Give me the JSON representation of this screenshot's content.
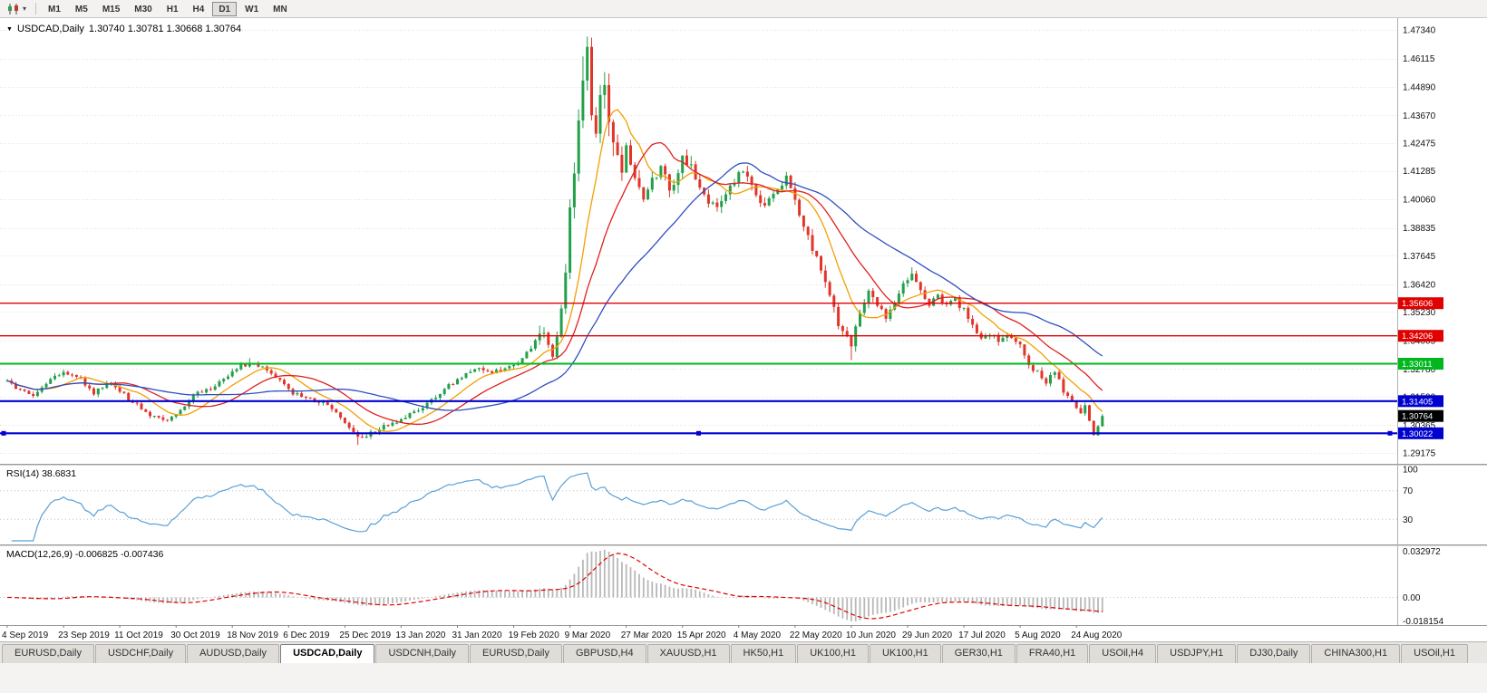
{
  "toolbar": {
    "dropdown_icon": "▾",
    "timeframes": [
      "M1",
      "M5",
      "M15",
      "M30",
      "H1",
      "H4",
      "D1",
      "W1",
      "MN"
    ],
    "active_timeframe": "D1"
  },
  "chart_header": {
    "collapse_icon": "▼",
    "symbol": "USDCAD,Daily",
    "ohlc": "1.30740 1.30781 1.30668 1.30764",
    "open": "1.30740",
    "high": "1.30781",
    "low": "1.30668",
    "close": "1.30764"
  },
  "price_axis": {
    "labels": [
      "1.47340",
      "1.46115",
      "1.44890",
      "1.43670",
      "1.42475",
      "1.41285",
      "1.40060",
      "1.38835",
      "1.37645",
      "1.36420",
      "1.35230",
      "1.34005",
      "1.32780",
      "1.31590",
      "1.30365",
      "1.29175"
    ]
  },
  "hlines": [
    {
      "value": 1.35606,
      "label": "1.35606",
      "color": "#e00000",
      "width": 1.4,
      "selected": false
    },
    {
      "value": 1.34206,
      "label": "1.34206",
      "color": "#e00000",
      "width": 1.4,
      "selected": false
    },
    {
      "value": 1.33011,
      "label": "1.33011",
      "color": "#00b81e",
      "width": 2.0,
      "selected": false
    },
    {
      "value": 1.31405,
      "label": "1.31405",
      "color": "#0000d0",
      "width": 2.2,
      "selected": false
    },
    {
      "value": 1.30022,
      "label": "1.30022",
      "color": "#0000d0",
      "width": 2.2,
      "selected": true
    }
  ],
  "current_price_tag": {
    "value": 1.30764,
    "label": "1.30764",
    "bg": "#000000",
    "fg": "#ffffff"
  },
  "candle_colors": {
    "up": "#22a04a",
    "down": "#e0362a"
  },
  "rsi_panel": {
    "label": "RSI(14) 38.6831",
    "axis_labels": [
      "100",
      "70",
      "30"
    ],
    "axis_values": [
      100,
      70,
      30
    ],
    "level_lines": [
      70,
      30
    ],
    "line_color": "#58a0d8"
  },
  "macd_panel": {
    "label": "MACD(12,26,9) -0.006825 -0.007436",
    "axis_labels": [
      "0.032972",
      "0.00",
      "-0.018154"
    ],
    "histogram_color": "#b8b8b8",
    "signal_color": "#e00000"
  },
  "date_axis": [
    "4 Sep 2019",
    "23 Sep 2019",
    "11 Oct 2019",
    "30 Oct 2019",
    "18 Nov 2019",
    "6 Dec 2019",
    "25 Dec 2019",
    "13 Jan 2020",
    "31 Jan 2020",
    "19 Feb 2020",
    "9 Mar 2020",
    "27 Mar 2020",
    "15 Apr 2020",
    "4 May 2020",
    "22 May 2020",
    "10 Jun 2020",
    "29 Jun 2020",
    "17 Jul 2020",
    "5 Aug 2020",
    "24 Aug 2020"
  ],
  "tabs": [
    {
      "label": "EURUSD,Daily",
      "active": false
    },
    {
      "label": "USDCHF,Daily",
      "active": false
    },
    {
      "label": "AUDUSD,Daily",
      "active": false
    },
    {
      "label": "USDCAD,Daily",
      "active": true
    },
    {
      "label": "USDCNH,Daily",
      "active": false
    },
    {
      "label": "EURUSD,Daily",
      "active": false
    },
    {
      "label": "GBPUSD,H4",
      "active": false
    },
    {
      "label": "XAUUSD,H1",
      "active": false
    },
    {
      "label": "HK50,H1",
      "active": false
    },
    {
      "label": "UK100,H1",
      "active": false
    },
    {
      "label": "UK100,H1",
      "active": false
    },
    {
      "label": "GER30,H1",
      "active": false
    },
    {
      "label": "FRA40,H1",
      "active": false
    },
    {
      "label": "USOil,H4",
      "active": false
    },
    {
      "label": "USDJPY,H1",
      "active": false
    },
    {
      "label": "DJ30,Daily",
      "active": false
    },
    {
      "label": "CHINA300,H1",
      "active": false
    },
    {
      "label": "USOil,H1",
      "active": false
    }
  ],
  "chart_data": {
    "type": "candlestick",
    "symbol": "USDCAD",
    "timeframe": "D1",
    "bars_total": 254,
    "last_close": 1.30764,
    "visible_price_high": 1.469,
    "visible_price_low": 1.2952,
    "anchors": [
      [
        0,
        1.3225
      ],
      [
        3,
        1.3185
      ],
      [
        6,
        1.316
      ],
      [
        10,
        1.3235
      ],
      [
        13,
        1.3265
      ],
      [
        16,
        1.325
      ],
      [
        20,
        1.3175
      ],
      [
        24,
        1.322
      ],
      [
        28,
        1.315
      ],
      [
        32,
        1.3095
      ],
      [
        34,
        1.307
      ],
      [
        36,
        1.3055
      ],
      [
        39,
        1.3078
      ],
      [
        43,
        1.3165
      ],
      [
        47,
        1.3195
      ],
      [
        50,
        1.324
      ],
      [
        54,
        1.329
      ],
      [
        57,
        1.33
      ],
      [
        60,
        1.327
      ],
      [
        63,
        1.3225
      ],
      [
        66,
        1.3175
      ],
      [
        70,
        1.3155
      ],
      [
        74,
        1.312
      ],
      [
        76,
        1.309
      ],
      [
        78,
        1.305
      ],
      [
        80,
        1.3
      ],
      [
        81,
        1.2985
      ],
      [
        83,
        1.2992
      ],
      [
        85,
        1.301
      ],
      [
        88,
        1.304
      ],
      [
        91,
        1.3058
      ],
      [
        95,
        1.3105
      ],
      [
        99,
        1.316
      ],
      [
        104,
        1.3235
      ],
      [
        108,
        1.3285
      ],
      [
        112,
        1.326
      ],
      [
        116,
        1.3285
      ],
      [
        119,
        1.332
      ],
      [
        122,
        1.34
      ],
      [
        124,
        1.343
      ],
      [
        125,
        1.3365
      ],
      [
        126,
        1.334
      ],
      [
        127,
        1.343
      ],
      [
        128,
        1.352
      ],
      [
        129,
        1.37
      ],
      [
        130,
        1.395
      ],
      [
        131,
        1.415
      ],
      [
        132,
        1.436
      ],
      [
        133,
        1.452
      ],
      [
        134,
        1.466
      ],
      [
        135,
        1.44
      ],
      [
        136,
        1.43
      ],
      [
        137,
        1.445
      ],
      [
        138,
        1.45
      ],
      [
        139,
        1.438
      ],
      [
        140,
        1.428
      ],
      [
        141,
        1.418
      ],
      [
        142,
        1.412
      ],
      [
        143,
        1.423
      ],
      [
        144,
        1.416
      ],
      [
        145,
        1.41
      ],
      [
        147,
        1.402
      ],
      [
        149,
        1.409
      ],
      [
        151,
        1.414
      ],
      [
        153,
        1.406
      ],
      [
        155,
        1.412
      ],
      [
        156,
        1.419
      ],
      [
        158,
        1.414
      ],
      [
        160,
        1.406
      ],
      [
        162,
        1.4
      ],
      [
        164,
        1.396
      ],
      [
        166,
        1.402
      ],
      [
        168,
        1.408
      ],
      [
        170,
        1.413
      ],
      [
        172,
        1.406
      ],
      [
        174,
        1.398
      ],
      [
        176,
        1.401
      ],
      [
        178,
        1.406
      ],
      [
        180,
        1.41
      ],
      [
        182,
        1.399
      ],
      [
        184,
        1.39
      ],
      [
        186,
        1.378
      ],
      [
        188,
        1.372
      ],
      [
        190,
        1.358
      ],
      [
        192,
        1.348
      ],
      [
        194,
        1.343
      ],
      [
        195,
        1.336
      ],
      [
        196,
        1.345
      ],
      [
        197,
        1.353
      ],
      [
        199,
        1.363
      ],
      [
        201,
        1.356
      ],
      [
        203,
        1.35
      ],
      [
        205,
        1.355
      ],
      [
        207,
        1.364
      ],
      [
        209,
        1.368
      ],
      [
        211,
        1.362
      ],
      [
        213,
        1.356
      ],
      [
        215,
        1.359
      ],
      [
        217,
        1.3545
      ],
      [
        219,
        1.3575
      ],
      [
        221,
        1.353
      ],
      [
        223,
        1.347
      ],
      [
        225,
        1.3415
      ],
      [
        227,
        1.3435
      ],
      [
        229,
        1.3395
      ],
      [
        231,
        1.342
      ],
      [
        233,
        1.339
      ],
      [
        234,
        1.338
      ],
      [
        236,
        1.33
      ],
      [
        238,
        1.326
      ],
      [
        240,
        1.322
      ],
      [
        242,
        1.327
      ],
      [
        244,
        1.318
      ],
      [
        246,
        1.313
      ],
      [
        248,
        1.309
      ],
      [
        249,
        1.312
      ],
      [
        250,
        1.306
      ],
      [
        251,
        1.2998
      ],
      [
        252,
        1.3035
      ],
      [
        253,
        1.30764
      ]
    ],
    "volatility_segments": [
      [
        0,
        122,
        0.0016
      ],
      [
        123,
        128,
        0.0035
      ],
      [
        129,
        140,
        0.008
      ],
      [
        141,
        158,
        0.0048
      ],
      [
        159,
        185,
        0.0033
      ],
      [
        186,
        200,
        0.0035
      ],
      [
        201,
        232,
        0.0022
      ],
      [
        233,
        250,
        0.002
      ],
      [
        251,
        253,
        0.0012
      ]
    ],
    "spikes": [
      [
        56,
        1.3325,
        null
      ],
      [
        81,
        null,
        1.2952
      ],
      [
        123,
        1.3465,
        null
      ],
      [
        133,
        1.462,
        null
      ],
      [
        134,
        1.469,
        null
      ],
      [
        195,
        null,
        1.3316
      ],
      [
        209,
        1.3715,
        null
      ],
      [
        251,
        null,
        1.2992
      ]
    ],
    "moving_averages": [
      {
        "period": 10,
        "color": "#f0a000"
      },
      {
        "period": 20,
        "color": "#e02020"
      },
      {
        "period": 40,
        "color": "#2f4fc0"
      }
    ],
    "indicators": {
      "rsi_period": 14,
      "macd_fast": 12,
      "macd_slow": 26,
      "macd_signal": 9
    }
  }
}
